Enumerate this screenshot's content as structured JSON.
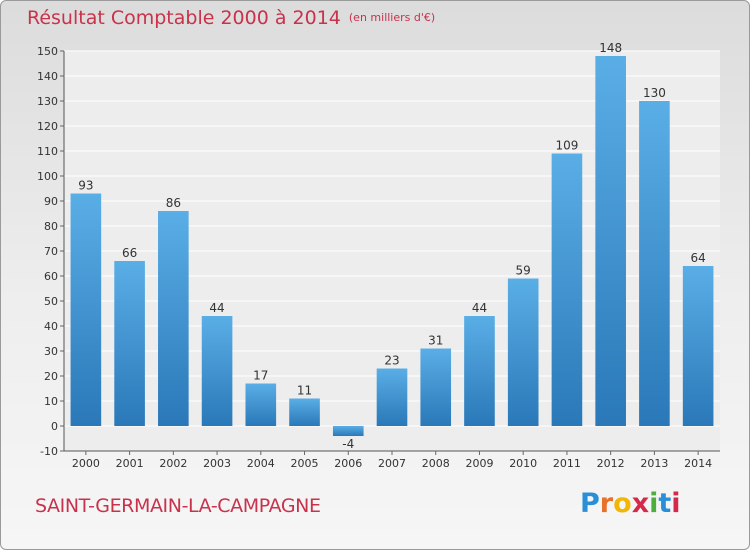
{
  "header": {
    "title": "Résultat Comptable 2000 à 2014",
    "subtitle": "(en milliers d'€)"
  },
  "footer": {
    "commune": "SAINT-GERMAIN-LA-CAMPAGNE",
    "logo_letters": [
      "P",
      "r",
      "o",
      "x",
      "i",
      "t",
      "i"
    ],
    "logo_colors": [
      "#2a8fd6",
      "#e8702a",
      "#f2b705",
      "#d6284b",
      "#4cae3c",
      "#2a8fd6",
      "#d6284b"
    ]
  },
  "colors": {
    "bar_light": "#5aaee6",
    "bar_dark": "#2a78b8",
    "accent": "#c8324b"
  },
  "chart_data": {
    "type": "bar",
    "title": "Résultat Comptable 2000 à 2014",
    "subtitle": "(en milliers d'€)",
    "categories": [
      "2000",
      "2001",
      "2002",
      "2003",
      "2004",
      "2005",
      "2006",
      "2007",
      "2008",
      "2009",
      "2010",
      "2011",
      "2012",
      "2013",
      "2014"
    ],
    "values": [
      93,
      66,
      86,
      44,
      17,
      11,
      -4,
      23,
      31,
      44,
      59,
      109,
      148,
      130,
      64
    ],
    "yticks": [
      -10,
      0,
      10,
      20,
      30,
      40,
      50,
      60,
      70,
      80,
      90,
      100,
      110,
      120,
      130,
      140,
      150
    ],
    "ylim": [
      -10,
      150
    ],
    "grid": true,
    "legend": "none"
  }
}
